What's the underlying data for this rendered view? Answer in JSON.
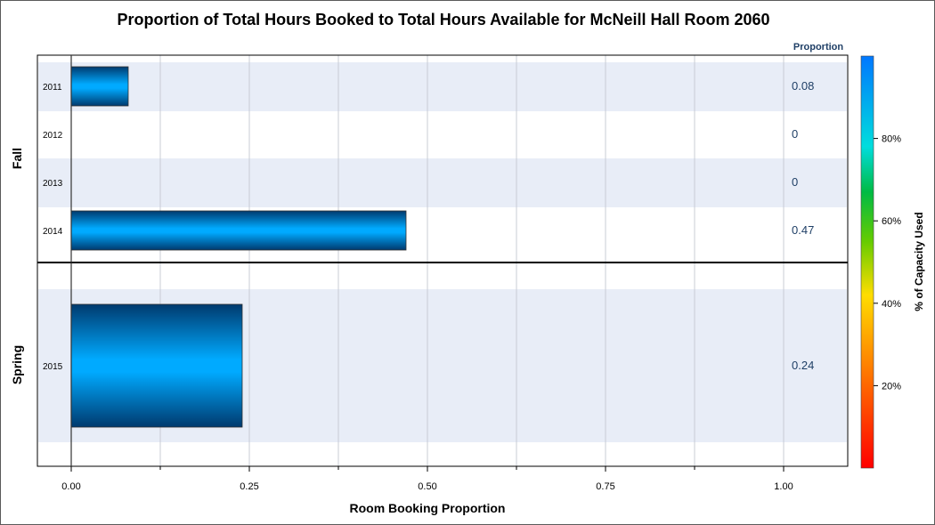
{
  "chart_data": {
    "type": "bar",
    "orientation": "horizontal",
    "title": "Proportion of Total Hours Booked to Total Hours Available for McNeill Hall Room 2060",
    "xlabel": "Room Booking Proportion",
    "xlim": [
      0,
      1.0
    ],
    "x_ticks": [
      "0.00",
      "0.25",
      "0.50",
      "0.75",
      "1.00"
    ],
    "x_tick_values": [
      0,
      0.25,
      0.5,
      0.75,
      1.0
    ],
    "value_column_header": "Proportion",
    "groups": [
      {
        "name": "Fall",
        "categories": [
          "2011",
          "2012",
          "2013",
          "2014"
        ],
        "values": [
          0.08,
          0,
          0,
          0.47
        ],
        "value_labels": [
          "0.08",
          "0",
          "0",
          "0.47"
        ]
      },
      {
        "name": "Spring",
        "categories": [
          "2015"
        ],
        "values": [
          0.24
        ],
        "value_labels": [
          "0.24"
        ]
      }
    ],
    "colorbar": {
      "label": "% of Capacity Used",
      "ticks": [
        "20%",
        "40%",
        "60%",
        "80%"
      ],
      "tick_values": [
        20,
        40,
        60,
        80
      ],
      "range": [
        0,
        100
      ],
      "colors": [
        "#ff0000",
        "#ff7f00",
        "#ffff00",
        "#00c000",
        "#00e0e0",
        "#0080ff"
      ]
    },
    "bar_color": "#0a86e8",
    "band_color": "#e8edf7",
    "grid": true
  }
}
